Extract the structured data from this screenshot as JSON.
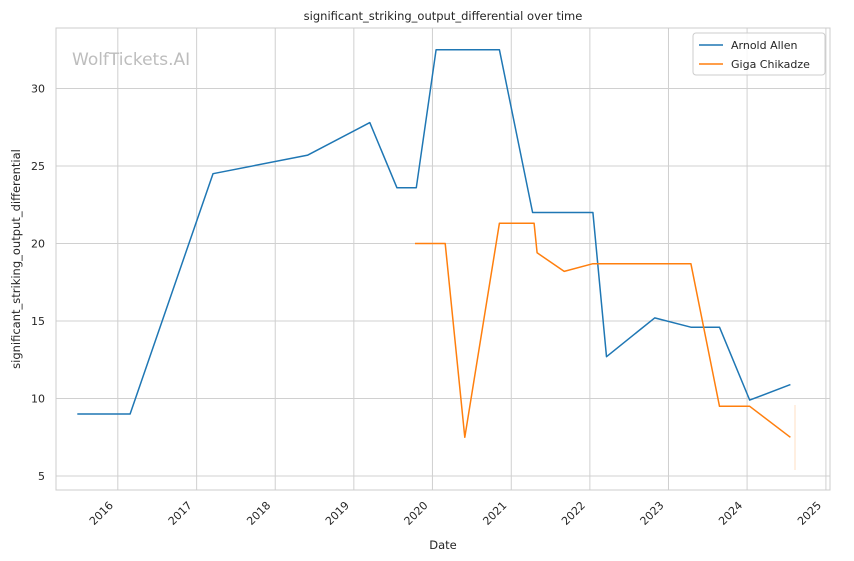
{
  "watermark": "WolfTickets.AI",
  "colors": {
    "series_0": "#1f77b4",
    "series_1": "#ff7f0e",
    "grid": "#d0d0d0",
    "frame": "#cccccc"
  },
  "chart_data": {
    "type": "line",
    "title": "significant_striking_output_differential over time",
    "xlabel": "Date",
    "ylabel": "significant_striking_output_differential",
    "x_ticks": [
      "2016",
      "2017",
      "2018",
      "2019",
      "2020",
      "2021",
      "2022",
      "2023",
      "2024",
      "2025"
    ],
    "y_ticks": [
      "5",
      "10",
      "15",
      "20",
      "25",
      "30"
    ],
    "xlim": [
      "2015-03-20",
      "2025-01-20"
    ],
    "ylim": [
      4.1,
      33.9
    ],
    "grid": true,
    "legend_position": "top-right",
    "series": [
      {
        "name": "Arnold Allen",
        "color": "#1f77b4",
        "points": [
          [
            "2015-06-27",
            9.0
          ],
          [
            "2016-02-27",
            9.0
          ],
          [
            "2017-03-18",
            24.5
          ],
          [
            "2018-06-01",
            25.7
          ],
          [
            "2019-03-16",
            27.8
          ],
          [
            "2019-07-20",
            23.6
          ],
          [
            "2019-10-18",
            23.6
          ],
          [
            "2020-01-18",
            32.5
          ],
          [
            "2020-11-07",
            32.5
          ],
          [
            "2021-04-10",
            22.0
          ],
          [
            "2022-01-15",
            22.0
          ],
          [
            "2022-03-19",
            12.7
          ],
          [
            "2022-10-29",
            15.2
          ],
          [
            "2023-04-15",
            14.6
          ],
          [
            "2023-08-26",
            14.6
          ],
          [
            "2024-01-13",
            9.9
          ],
          [
            "2024-07-20",
            10.9
          ]
        ]
      },
      {
        "name": "Giga Chikadze",
        "color": "#ff7f0e",
        "points": [
          [
            "2019-10-12",
            20.0
          ],
          [
            "2020-02-29",
            20.0
          ],
          [
            "2020-05-30",
            7.5
          ],
          [
            "2020-11-07",
            21.3
          ],
          [
            "2021-04-17",
            21.3
          ],
          [
            "2021-05-01",
            19.4
          ],
          [
            "2021-09-04",
            18.2
          ],
          [
            "2022-01-15",
            18.7
          ],
          [
            "2023-04-15",
            18.7
          ],
          [
            "2023-08-26",
            9.5
          ],
          [
            "2024-01-13",
            9.5
          ],
          [
            "2024-07-20",
            7.5
          ]
        ]
      }
    ]
  }
}
